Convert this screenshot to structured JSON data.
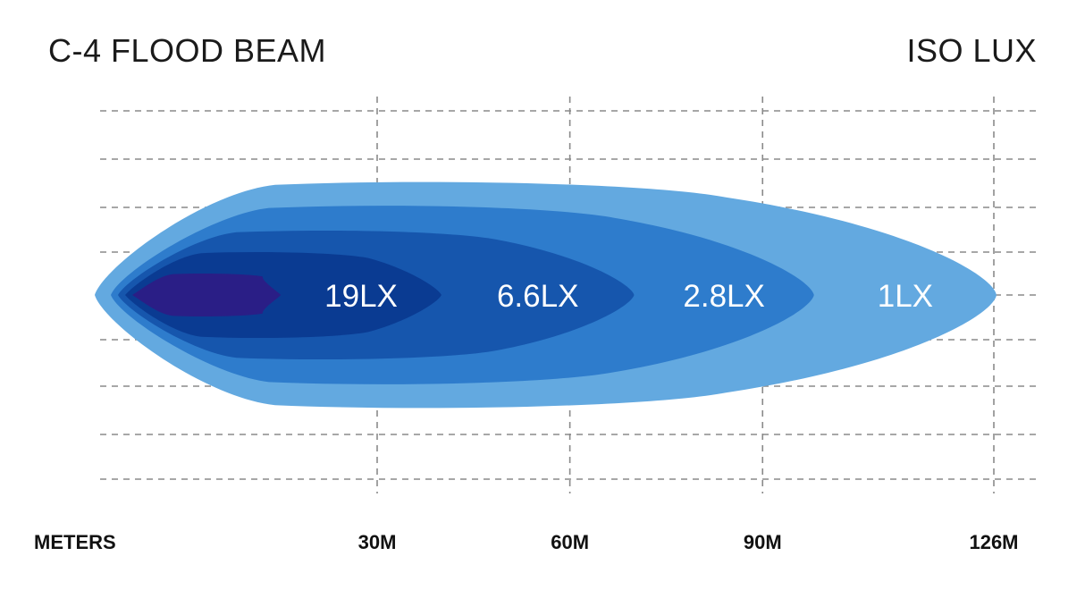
{
  "header": {
    "title": "C-4 FLOOD BEAM",
    "subtitle": "ISO LUX"
  },
  "chart_data": {
    "type": "area",
    "title": "C-4 FLOOD BEAM",
    "subtitle": "ISO LUX",
    "xlabel": "METERS",
    "ylabel": "",
    "x_ticks": [
      30,
      60,
      90,
      126
    ],
    "x_tick_labels": [
      "30M",
      "60M",
      "90M",
      "126M"
    ],
    "xlim": [
      -40,
      132
    ],
    "grid": true,
    "contours": [
      {
        "label": "1LX",
        "lux": 1,
        "reach_m": 126,
        "max_half_width": 1.0,
        "color": "#63a9e0"
      },
      {
        "label": "2.8LX",
        "lux": 2.8,
        "reach_m": 98,
        "max_half_width": 0.79,
        "color": "#2e7ccc"
      },
      {
        "label": "6.6LX",
        "lux": 6.6,
        "reach_m": 70,
        "max_half_width": 0.57,
        "color": "#1656ad"
      },
      {
        "label": "19LX",
        "lux": 19,
        "reach_m": 40,
        "max_half_width": 0.38,
        "color": "#0a3b92"
      },
      {
        "label": "",
        "lux": null,
        "reach_m": 15,
        "max_half_width": 0.19,
        "color": "#2a1e86"
      }
    ]
  }
}
